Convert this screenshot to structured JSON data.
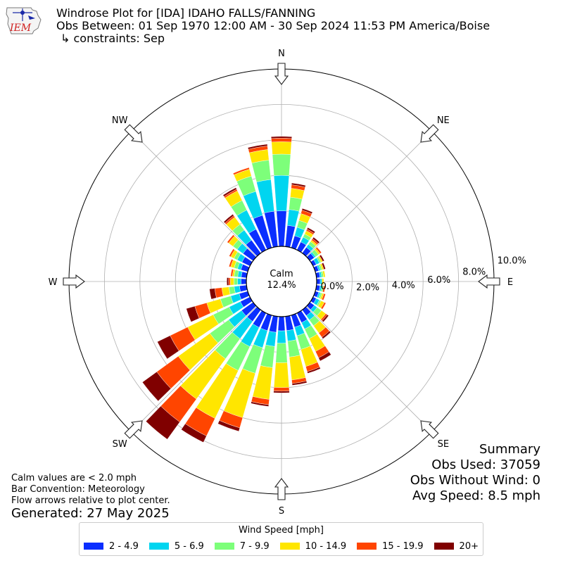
{
  "header": {
    "title_line1": "Windrose Plot for [IDA] IDAHO FALLS/FANNING",
    "title_line2": "Obs Between: 01 Sep 1970 12:00 AM - 30 Sep 2024 11:53 PM America/Boise",
    "title_line3": "↳ constraints: Sep",
    "logo_text": "IEM"
  },
  "calm": {
    "label": "Calm",
    "value": "12.4%"
  },
  "notes": {
    "line1": "Calm values are < 2.0 mph",
    "line2": "Bar Convention: Meteorology",
    "line3": "Flow arrows relative to plot center.",
    "generated": "Generated: 27 May 2025"
  },
  "summary": {
    "title": "Summary",
    "obs_used": "Obs Used: 37059",
    "obs_without_wind": "Obs Without Wind: 0",
    "avg_speed": "Avg Speed: 8.5 mph"
  },
  "legend": {
    "title": "Wind Speed [mph]",
    "items": [
      {
        "label": "2 - 4.9",
        "color": "#0a2eff"
      },
      {
        "label": "5 - 6.9",
        "color": "#00d5f0"
      },
      {
        "label": "7 - 9.9",
        "color": "#7dff7a"
      },
      {
        "label": "10 - 14.9",
        "color": "#ffe600"
      },
      {
        "label": "15 - 19.9",
        "color": "#ff4500"
      },
      {
        "label": "20+",
        "color": "#800000"
      }
    ]
  },
  "chart_data": {
    "type": "windrose",
    "direction_labels": [
      "N",
      "NE",
      "E",
      "SE",
      "S",
      "SW",
      "W",
      "NW"
    ],
    "radial_tick_labels": [
      "0.0%",
      "2.0%",
      "4.0%",
      "6.0%",
      "8.0%",
      "10.0%"
    ],
    "radial_max": 10.0,
    "radial_ticks": [
      2,
      4,
      6,
      8,
      10
    ],
    "grid": true,
    "legend_position": "bottom",
    "bins": [
      "2 - 4.9",
      "5 - 6.9",
      "7 - 9.9",
      "10 - 14.9",
      "15 - 19.9",
      "20+"
    ],
    "directions_deg": [
      0,
      10,
      20,
      30,
      40,
      50,
      60,
      70,
      80,
      90,
      100,
      110,
      120,
      130,
      140,
      150,
      160,
      170,
      180,
      190,
      200,
      210,
      220,
      230,
      240,
      250,
      260,
      270,
      280,
      290,
      300,
      310,
      320,
      330,
      340,
      350
    ],
    "cumulative": [
      [
        2.0,
        4.0,
        5.2,
        5.9,
        6.1,
        6.2
      ],
      [
        1.2,
        2.1,
        2.8,
        3.3,
        3.5,
        3.6
      ],
      [
        0.7,
        1.2,
        1.6,
        2.0,
        2.2,
        2.3
      ],
      [
        0.5,
        0.8,
        1.0,
        1.2,
        1.3,
        1.4
      ],
      [
        0.4,
        0.6,
        0.8,
        0.9,
        1.0,
        1.1
      ],
      [
        0.3,
        0.4,
        0.6,
        0.7,
        0.8,
        0.8
      ],
      [
        0.2,
        0.4,
        0.5,
        0.6,
        0.6,
        0.7
      ],
      [
        0.2,
        0.3,
        0.4,
        0.5,
        0.5,
        0.6
      ],
      [
        0.2,
        0.3,
        0.4,
        0.5,
        0.5,
        0.5
      ],
      [
        0.2,
        0.3,
        0.3,
        0.4,
        0.4,
        0.4
      ],
      [
        0.2,
        0.3,
        0.4,
        0.4,
        0.5,
        0.5
      ],
      [
        0.2,
        0.3,
        0.4,
        0.5,
        0.6,
        0.6
      ],
      [
        0.2,
        0.4,
        0.5,
        0.7,
        0.8,
        0.8
      ],
      [
        0.3,
        0.5,
        0.8,
        1.1,
        1.2,
        1.3
      ],
      [
        0.4,
        0.7,
        1.1,
        1.6,
        1.9,
        2.0
      ],
      [
        0.6,
        1.0,
        1.6,
        2.4,
        2.8,
        3.0
      ],
      [
        0.7,
        1.2,
        2.0,
        3.0,
        3.3,
        3.4
      ],
      [
        0.8,
        1.4,
        2.3,
        3.6,
        3.8,
        3.9
      ],
      [
        0.8,
        1.5,
        2.6,
        4.0,
        4.2,
        4.3
      ],
      [
        0.9,
        1.7,
        2.9,
        4.7,
        5.0,
        5.1
      ],
      [
        0.9,
        1.9,
        3.4,
        6.0,
        6.6,
        6.8
      ],
      [
        0.9,
        2.1,
        3.6,
        6.6,
        7.7,
        8.1
      ],
      [
        0.8,
        2.0,
        3.4,
        6.2,
        7.8,
        9.0
      ],
      [
        0.8,
        1.7,
        3.0,
        5.2,
        6.7,
        7.7
      ],
      [
        0.6,
        1.3,
        2.3,
        3.9,
        5.0,
        5.8
      ],
      [
        0.5,
        1.0,
        1.6,
        2.4,
        3.1,
        3.6
      ],
      [
        0.4,
        0.7,
        1.0,
        1.4,
        1.8,
        2.1
      ],
      [
        0.3,
        0.5,
        0.7,
        0.9,
        1.0,
        1.1
      ],
      [
        0.3,
        0.5,
        0.7,
        0.8,
        0.9,
        0.9
      ],
      [
        0.4,
        0.6,
        0.8,
        1.0,
        1.1,
        1.1
      ],
      [
        0.5,
        0.8,
        1.0,
        1.2,
        1.3,
        1.3
      ],
      [
        0.7,
        1.1,
        1.4,
        1.7,
        1.8,
        1.8
      ],
      [
        0.9,
        1.6,
        2.0,
        2.5,
        2.6,
        2.7
      ],
      [
        1.3,
        2.5,
        3.1,
        3.7,
        3.8,
        3.9
      ],
      [
        1.9,
        3.3,
        4.2,
        4.6,
        4.7,
        4.7
      ],
      [
        2.0,
        3.8,
        4.9,
        5.5,
        5.7,
        5.8
      ]
    ]
  }
}
